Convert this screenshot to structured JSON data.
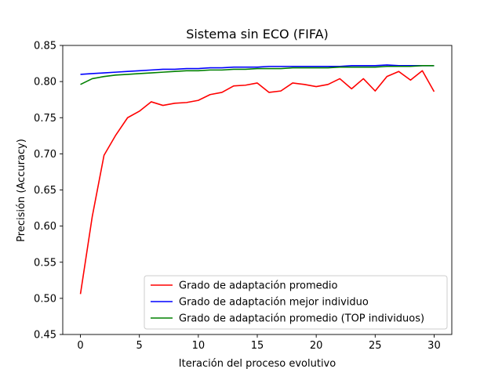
{
  "chart_data": {
    "type": "line",
    "title": "Sistema sin ECO (FIFA)",
    "xlabel": "Iteración del proceso evolutivo",
    "ylabel": "Precisión (Accuracy)",
    "xlim": [
      -1.5,
      31.5
    ],
    "ylim": [
      0.45,
      0.85
    ],
    "xticks": [
      0,
      5,
      10,
      15,
      20,
      25,
      30
    ],
    "xtick_labels": [
      "0",
      "5",
      "10",
      "15",
      "20",
      "25",
      "30"
    ],
    "yticks": [
      0.45,
      0.5,
      0.55,
      0.6,
      0.65,
      0.7,
      0.75,
      0.8,
      0.85
    ],
    "ytick_labels": [
      "0.45",
      "0.50",
      "0.55",
      "0.60",
      "0.65",
      "0.70",
      "0.75",
      "0.80",
      "0.85"
    ],
    "grid": false,
    "legend_position": "lower-right",
    "x": [
      0,
      1,
      2,
      3,
      4,
      5,
      6,
      7,
      8,
      9,
      10,
      11,
      12,
      13,
      14,
      15,
      16,
      17,
      18,
      19,
      20,
      21,
      22,
      23,
      24,
      25,
      26,
      27,
      28,
      29,
      30
    ],
    "series": [
      {
        "name": "Grado de adaptación promedio",
        "color": "#ff0000",
        "values": [
          0.506,
          0.613,
          0.698,
          0.726,
          0.75,
          0.759,
          0.772,
          0.767,
          0.77,
          0.771,
          0.774,
          0.782,
          0.785,
          0.794,
          0.795,
          0.798,
          0.785,
          0.787,
          0.798,
          0.796,
          0.793,
          0.796,
          0.804,
          0.79,
          0.804,
          0.787,
          0.807,
          0.814,
          0.802,
          0.815,
          0.786
        ]
      },
      {
        "name": "Grado de adaptación mejor individuo",
        "color": "#0000ff",
        "values": [
          0.81,
          0.811,
          0.812,
          0.813,
          0.814,
          0.815,
          0.816,
          0.817,
          0.817,
          0.818,
          0.818,
          0.819,
          0.819,
          0.82,
          0.82,
          0.82,
          0.821,
          0.821,
          0.821,
          0.821,
          0.821,
          0.821,
          0.821,
          0.822,
          0.822,
          0.822,
          0.823,
          0.822,
          0.822,
          0.822,
          0.822
        ]
      },
      {
        "name": "Grado de adaptación promedio (TOP individuos)",
        "color": "#008000",
        "values": [
          0.796,
          0.804,
          0.807,
          0.809,
          0.81,
          0.811,
          0.812,
          0.813,
          0.814,
          0.815,
          0.815,
          0.816,
          0.816,
          0.817,
          0.817,
          0.818,
          0.818,
          0.818,
          0.819,
          0.819,
          0.819,
          0.819,
          0.82,
          0.82,
          0.82,
          0.82,
          0.821,
          0.821,
          0.821,
          0.822,
          0.822
        ]
      }
    ]
  }
}
